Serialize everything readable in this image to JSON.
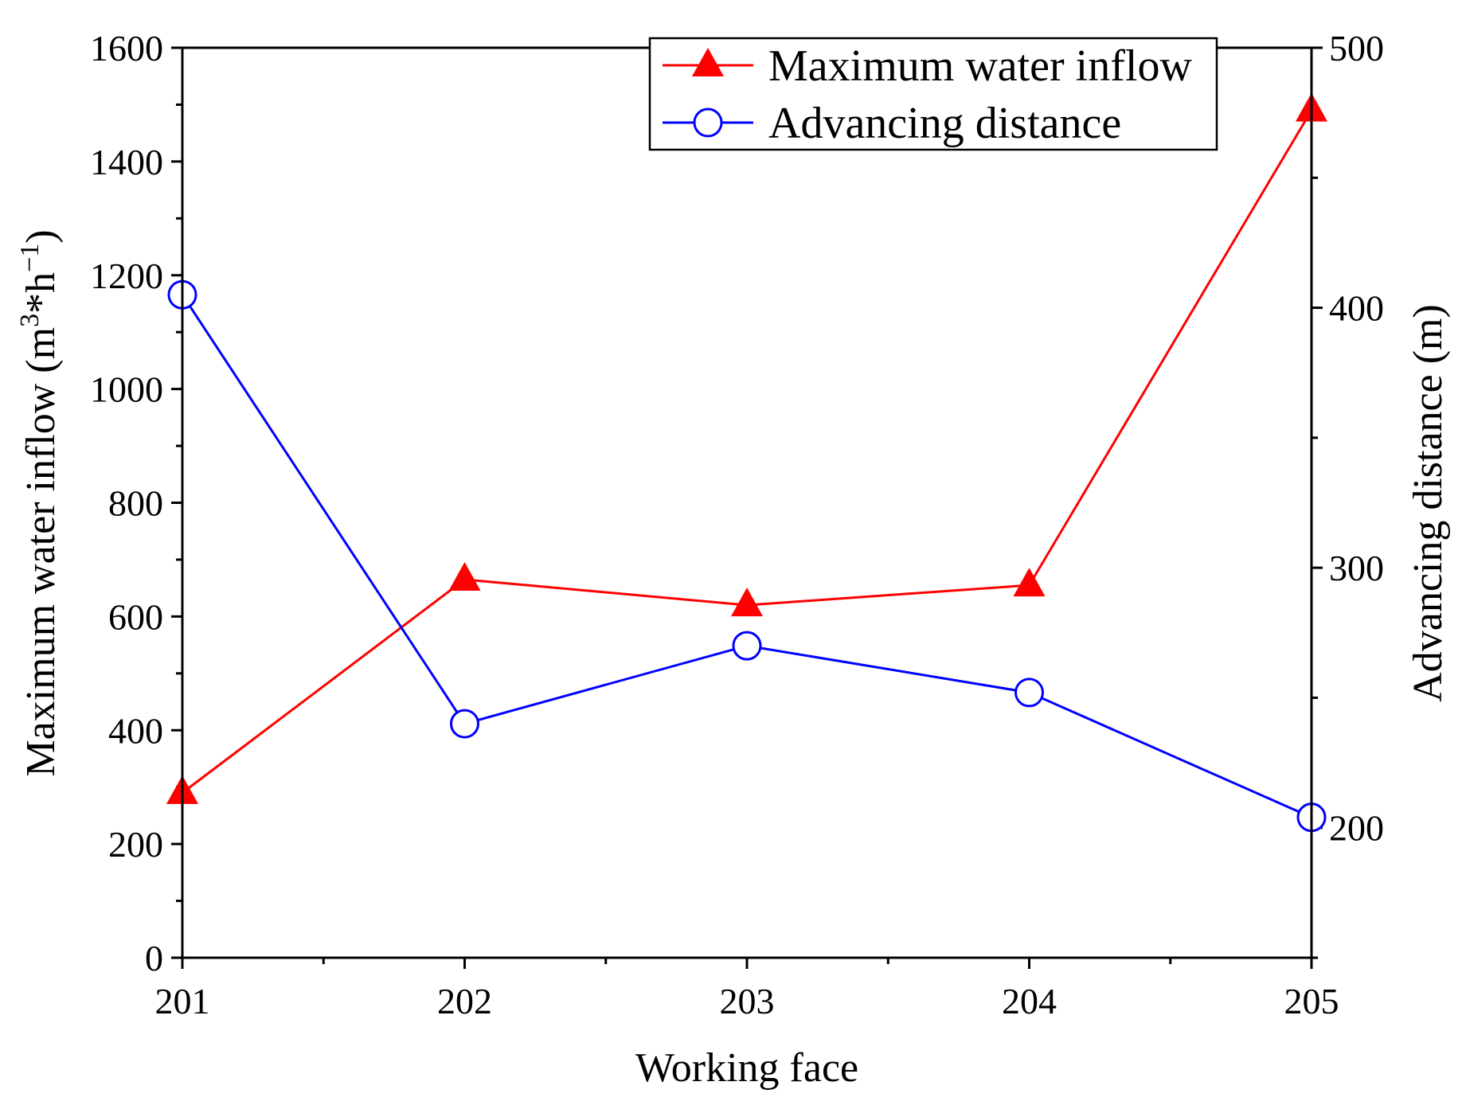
{
  "chart_data": {
    "type": "line",
    "title": "",
    "xlabel": "Working face",
    "ylabel_left": {
      "prefix": "Maximum water inflow (m",
      "sup1": "3",
      "mid": "*h",
      "sup2": "−1",
      "suffix": ")"
    },
    "ylabel_right": "Advancing distance (m)",
    "categories": [
      "201",
      "202",
      "203",
      "204",
      "205"
    ],
    "y_left": {
      "range": [
        0,
        1600
      ],
      "ticks": [
        0,
        200,
        400,
        600,
        800,
        1000,
        1200,
        1400,
        1600
      ]
    },
    "y_right": {
      "range": [
        150,
        500
      ],
      "ticks": [
        200,
        300,
        400,
        500
      ]
    },
    "series": [
      {
        "name": "Maximum water inflow",
        "axis": "left",
        "marker": "triangle",
        "color": "#ff0000",
        "values": [
          290,
          665,
          620,
          655,
          1490
        ]
      },
      {
        "name": "Advancing distance",
        "axis": "right",
        "marker": "circle",
        "color": "#0000ff",
        "values": [
          405,
          240,
          270,
          252,
          204
        ]
      }
    ],
    "legend": {
      "position": "top-right"
    },
    "grid": false
  }
}
